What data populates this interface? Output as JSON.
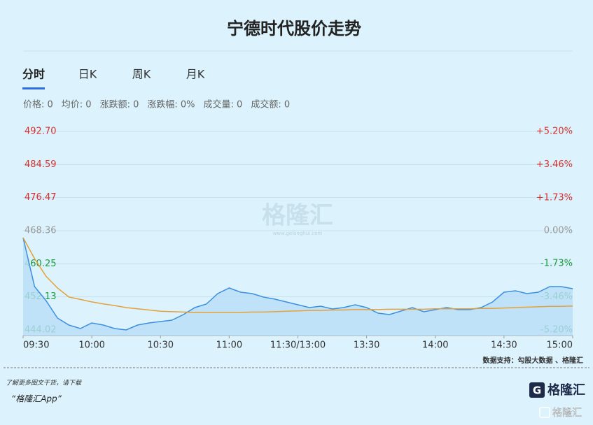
{
  "page_title": "宁德时代股价走势",
  "tabs": [
    "分时",
    "日K",
    "周K",
    "月K"
  ],
  "active_tab": 0,
  "info": [
    "价格: 0",
    "均价: 0",
    "涨跌额: 0",
    "涨跌幅: 0%",
    "成交量: 0",
    "成交额: 0"
  ],
  "chart_data": {
    "type": "line",
    "ylim": [
      444.02,
      492.7
    ],
    "yticks": [
      {
        "value": 492.7,
        "label": "492.70"
      },
      484.59,
      476.47,
      468.36,
      460.25,
      452.13,
      444.02
    ],
    "y2lim": [
      -5.2,
      5.2
    ],
    "y2ticks": [
      {
        "value": 5.2,
        "label": "+5.20%"
      },
      {
        "value": 3.46,
        "label": "+3.46%"
      },
      {
        "value": 1.73,
        "label": "+1.73%"
      },
      {
        "value": 0,
        "label": "0.00%"
      },
      {
        "value": -1.73,
        "label": "-1.73%"
      },
      {
        "value": -3.46,
        "label": "-3.46%"
      },
      {
        "value": -5.2,
        "label": "-5.20%"
      }
    ],
    "x_labels": [
      "09:30",
      "10:00",
      "10:30",
      "11:00",
      "11:30/13:00",
      "13:30",
      "14:00",
      "14:30",
      "15:00"
    ],
    "up_color": "#d9302c",
    "down_color": "#1a9a3c",
    "flat_color": "#999999",
    "grid": true,
    "series": [
      {
        "color": "#3d8fe0",
        "fill": "#b9ddf7",
        "values": [
          466.65,
          454.65,
          451.22,
          446.94,
          445.22,
          444.37,
          445.74,
          445.22,
          444.37,
          444.02,
          445.22,
          445.74,
          446.08,
          446.42,
          447.79,
          449.51,
          450.36,
          452.94,
          454.31,
          453.28,
          452.94,
          452.08,
          451.56,
          450.88,
          450.19,
          449.51,
          449.85,
          449.16,
          449.51,
          450.19,
          449.51,
          448.14,
          447.79,
          448.65,
          449.51,
          448.48,
          448.99,
          449.51,
          448.99,
          448.99,
          449.51,
          450.88,
          453.28,
          453.62,
          452.94,
          453.28,
          454.65,
          454.65,
          454.13
        ]
      },
      {
        "color": "#e3a13a",
        "values": [
          466.65,
          461.5,
          457.2,
          454.3,
          452.1,
          451.5,
          450.9,
          450.4,
          450.0,
          449.5,
          449.2,
          448.9,
          448.6,
          448.5,
          448.4,
          448.3,
          448.3,
          448.3,
          448.3,
          448.3,
          448.4,
          448.4,
          448.5,
          448.6,
          448.7,
          448.8,
          448.8,
          448.9,
          448.9,
          449.0,
          449.0,
          449.0,
          449.1,
          449.1,
          449.1,
          449.1,
          449.2,
          449.2,
          449.2,
          449.2,
          449.3,
          449.3,
          449.4,
          449.5,
          449.6,
          449.7,
          449.8,
          449.8,
          449.9
        ]
      }
    ],
    "watermark": "格隆汇",
    "watermark_url": "www.gelonghui.com"
  },
  "source": "数据支持：勾股大数据 、格隆汇",
  "footer": {
    "note": "了解更多图文干货，请下载",
    "app": "“格隆汇App”",
    "logo": "格隆汇",
    "badge": "格隆汇"
  }
}
